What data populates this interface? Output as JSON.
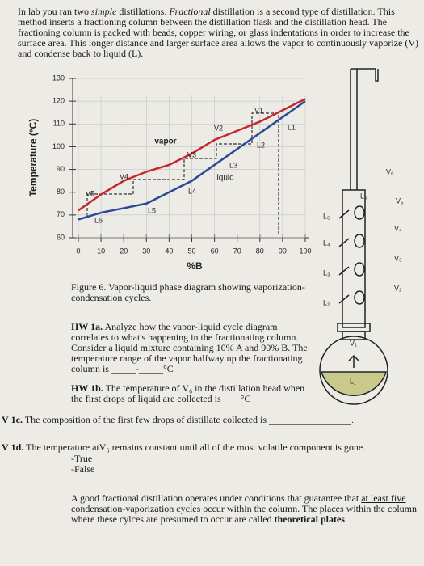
{
  "intro": [
    "In lab you ran two ",
    "simple",
    " distillations. ",
    "Fractional",
    " distillation is a second type of distillation. This method inserts a fractioning column between the distillation flask and the distillation head. The fractioning column is packed with beads, copper wiring, or glass indentations in order to increase the surface area. This longer distance and larger surface area allows the vapor to continuously vaporize (V) and condense back to liquid (L)."
  ],
  "chart_data": {
    "type": "line",
    "xlabel": "%B",
    "ylabel": "Temperature (°C)",
    "x": [
      0,
      10,
      20,
      30,
      40,
      50,
      60,
      70,
      80,
      90,
      100
    ],
    "series": [
      {
        "name": "vapor",
        "color": "#c8262c",
        "values": [
          72,
          79,
          85,
          89,
          92,
          97,
          103,
          107,
          111,
          116,
          121
        ]
      },
      {
        "name": "liquid",
        "color": "#2b4a96",
        "values": [
          68,
          71,
          73,
          75,
          80,
          85,
          92,
          99,
          106,
          113,
          120
        ]
      }
    ],
    "xlim": [
      0,
      100
    ],
    "ylim": [
      60,
      130
    ],
    "xticks": [
      0,
      10,
      20,
      30,
      40,
      50,
      60,
      70,
      80,
      90,
      100
    ],
    "yticks": [
      60,
      70,
      80,
      90,
      100,
      110,
      120,
      130
    ],
    "grid": true,
    "annotations": [
      "V1",
      "V2",
      "V3",
      "L1",
      "L2",
      "L3",
      "V4",
      "L4",
      "V5",
      "L5",
      "L6"
    ]
  },
  "column_labels": [
    "V₆",
    "L₆",
    "V₅",
    "L₅",
    "V₄",
    "L₄",
    "V₃",
    "L₃",
    "V₂",
    "L₂",
    "V₁",
    "L₁"
  ],
  "caption": "Figure 6. Vapor-liquid phase diagram showing vaporization-condensation cycles.",
  "hw1a": {
    "label": "HW 1a.",
    "text": "Analyze how the vapor-liquid cycle diagram correlates to what's happening in the fractionating column. Consider a liquid mixture containing 10% A and 90% B. The temperature range of the vapor halfway up the fractionating column is _____-_____°C"
  },
  "hw1b": {
    "label": "HW 1b.",
    "text": "The temperature of V₆ in the distillation head when the first drops of liquid are collected is____°C"
  },
  "q1c": {
    "mark": "V",
    "label": "1c.",
    "text": "The composition of the first few drops of distillate collected is _________________."
  },
  "q1d": {
    "mark": "V",
    "label": "1d.",
    "text": "The temperature atV₆ remains constant until all of the most volatile component is gone.",
    "options": [
      "-True",
      "-False"
    ]
  },
  "closing": [
    "A good fractional distillation operates under conditions that guarantee that ",
    "at least five",
    " condensation-vaporization cycles occur within the column. The places within the column where these cylces are presumed to occur are called ",
    "theoretical plates",
    "."
  ]
}
